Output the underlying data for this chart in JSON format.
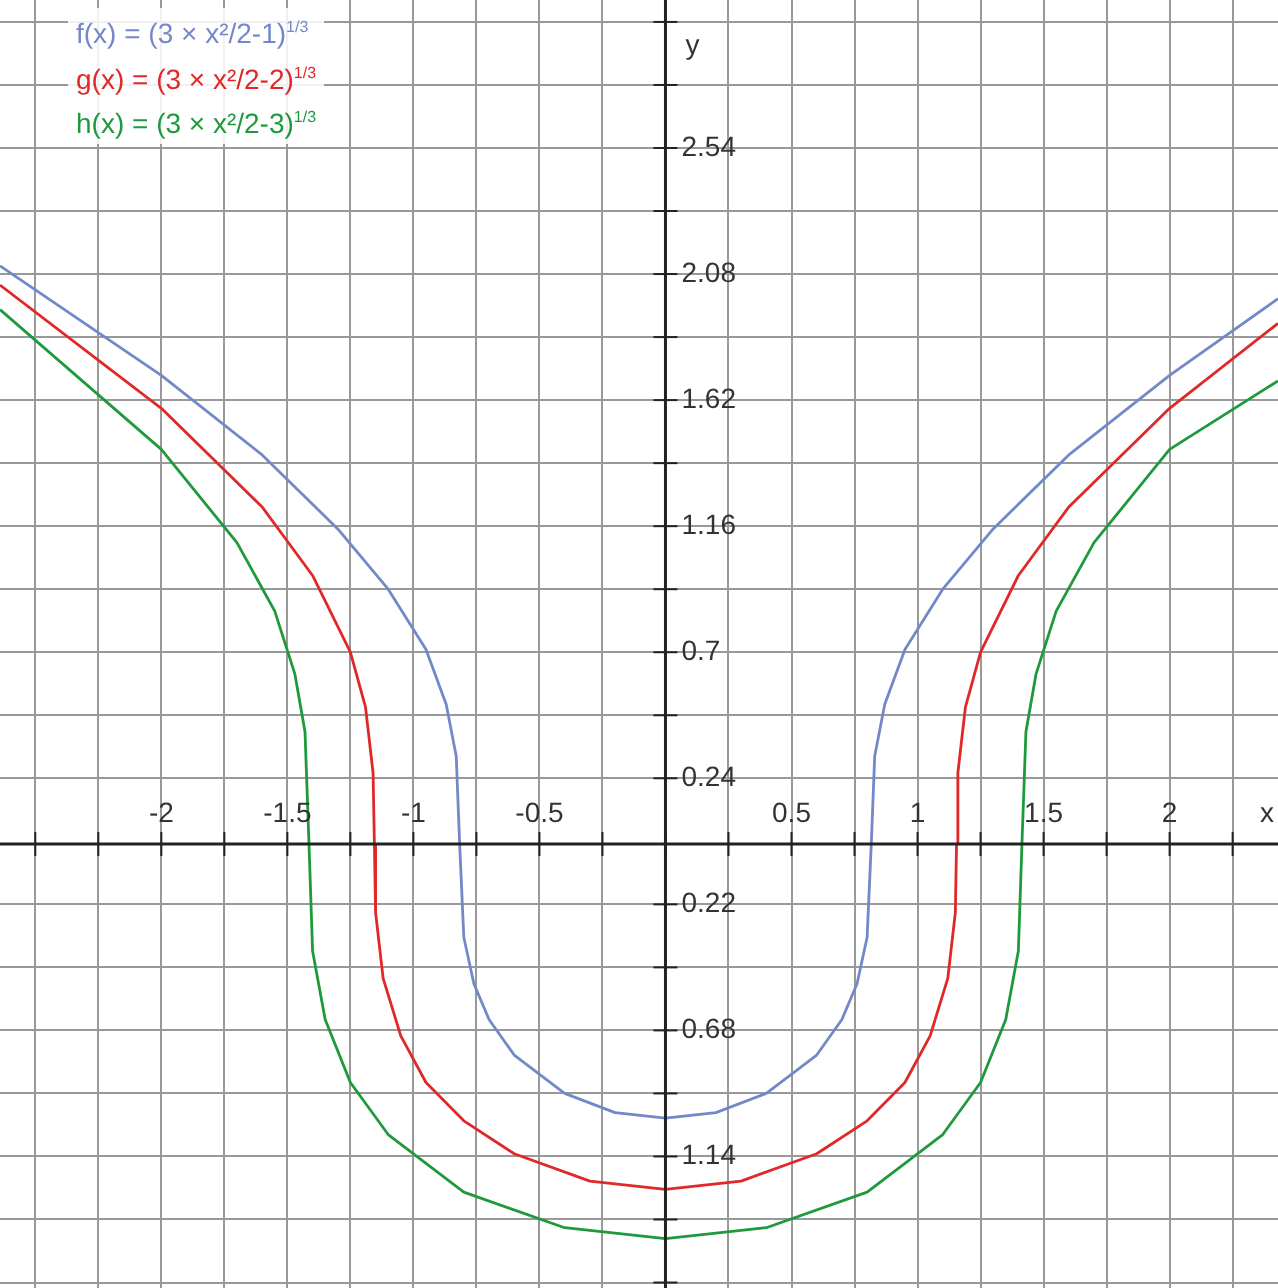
{
  "chart_data": {
    "type": "line",
    "xlabel": "x",
    "ylabel": "y",
    "grid": true,
    "legend": "top left",
    "marker": "none",
    "xlim": [
      -2.64,
      2.43
    ],
    "ylim": [
      -1.62,
      3.08
    ],
    "xticks": [
      {
        "value": -2.5,
        "label": null
      },
      {
        "value": -2.25,
        "label": null
      },
      {
        "value": -2,
        "label": "-2"
      },
      {
        "value": -1.75,
        "label": null
      },
      {
        "value": -1.5,
        "label": "-1.5"
      },
      {
        "value": -1.25,
        "label": null
      },
      {
        "value": -1,
        "label": "-1"
      },
      {
        "value": -0.75,
        "label": null
      },
      {
        "value": -0.5,
        "label": "-0.5"
      },
      {
        "value": -0.25,
        "label": null
      },
      {
        "value": 0,
        "label": null
      },
      {
        "value": 0.25,
        "label": null
      },
      {
        "value": 0.5,
        "label": "0.5"
      },
      {
        "value": 0.75,
        "label": null
      },
      {
        "value": 1,
        "label": "1"
      },
      {
        "value": 1.25,
        "label": null
      },
      {
        "value": 1.5,
        "label": "1.5"
      },
      {
        "value": 1.75,
        "label": null
      },
      {
        "value": 2,
        "label": "2"
      },
      {
        "value": 2.25,
        "label": null
      }
    ],
    "yticks": [
      {
        "value": -1.6,
        "label": null
      },
      {
        "value": -1.37,
        "label": null
      },
      {
        "value": -1.14,
        "label": "1.14"
      },
      {
        "value": -0.91,
        "label": null
      },
      {
        "value": -0.68,
        "label": "0.68"
      },
      {
        "value": -0.45,
        "label": null
      },
      {
        "value": -0.22,
        "label": "0.22"
      },
      {
        "value": 0.24,
        "label": "0.24"
      },
      {
        "value": 0.47,
        "label": null
      },
      {
        "value": 0.7,
        "label": "0.7"
      },
      {
        "value": 0.93,
        "label": null
      },
      {
        "value": 1.16,
        "label": "1.16"
      },
      {
        "value": 1.39,
        "label": null
      },
      {
        "value": 1.62,
        "label": "1.62"
      },
      {
        "value": 1.85,
        "label": null
      },
      {
        "value": 2.08,
        "label": "2.08"
      },
      {
        "value": 2.31,
        "label": null
      },
      {
        "value": 2.54,
        "label": "2.54"
      },
      {
        "value": 2.77,
        "label": null
      },
      {
        "value": 3.0,
        "label": null
      }
    ],
    "series": [
      {
        "name": "f(x) = (3 × x²/2-1)$^{1/3}$",
        "color": "#7388c8",
        "x": [
          -2.64,
          -2,
          -1.6,
          -1.3,
          -1.1,
          -0.95,
          -0.87,
          -0.83,
          -0.8165,
          -0.8,
          -0.76,
          -0.7,
          -0.6,
          -0.4,
          -0.2,
          0,
          0.2,
          0.4,
          0.6,
          0.7,
          0.76,
          0.8,
          0.8165,
          0.83,
          0.87,
          0.95,
          1.1,
          1.3,
          1.6,
          2,
          2.43
        ],
        "values": [
          2.11,
          1.71,
          1.42,
          1.15,
          0.93,
          0.71,
          0.51,
          0.32,
          0,
          -0.34,
          -0.51,
          -0.64,
          -0.77,
          -0.91,
          -0.98,
          -1,
          -0.98,
          -0.91,
          -0.77,
          -0.64,
          -0.51,
          -0.34,
          0,
          0.32,
          0.51,
          0.71,
          0.93,
          1.15,
          1.42,
          1.71,
          1.99
        ]
      },
      {
        "name": "g(x) = (3 × x²/2-2)$^{1/3}$",
        "color": "#e02828",
        "x": [
          -2.64,
          -2,
          -1.6,
          -1.4,
          -1.25,
          -1.19,
          -1.16,
          -1.1547,
          -1.15,
          -1.12,
          -1.05,
          -0.95,
          -0.8,
          -0.6,
          -0.3,
          0,
          0.3,
          0.6,
          0.8,
          0.95,
          1.05,
          1.12,
          1.15,
          1.1547,
          1.16,
          1.19,
          1.25,
          1.4,
          1.6,
          2,
          2.43
        ],
        "values": [
          2.04,
          1.59,
          1.23,
          0.98,
          0.7,
          0.5,
          0.26,
          0,
          -0.25,
          -0.49,
          -0.7,
          -0.87,
          -1.01,
          -1.13,
          -1.23,
          -1.26,
          -1.23,
          -1.13,
          -1.01,
          -0.87,
          -0.7,
          -0.49,
          -0.25,
          0,
          0.26,
          0.5,
          0.7,
          0.98,
          1.23,
          1.59,
          1.9
        ]
      },
      {
        "name": "h(x) = (3 × x²/2-3)$^{1/3}$",
        "color": "#1e9a3c",
        "x": [
          -2.64,
          -2,
          -1.7,
          -1.55,
          -1.47,
          -1.43,
          -1.4142,
          -1.4,
          -1.35,
          -1.25,
          -1.1,
          -0.8,
          -0.4,
          0,
          0.4,
          0.8,
          1.1,
          1.25,
          1.35,
          1.4,
          1.4142,
          1.43,
          1.47,
          1.55,
          1.7,
          2,
          2.43
        ],
        "values": [
          1.95,
          1.44,
          1.1,
          0.85,
          0.62,
          0.41,
          0,
          -0.39,
          -0.64,
          -0.87,
          -1.06,
          -1.27,
          -1.4,
          -1.44,
          -1.4,
          -1.27,
          -1.06,
          -0.87,
          -0.64,
          -0.39,
          0,
          0.41,
          0.62,
          0.85,
          1.1,
          1.44,
          1.69
        ]
      }
    ]
  }
}
